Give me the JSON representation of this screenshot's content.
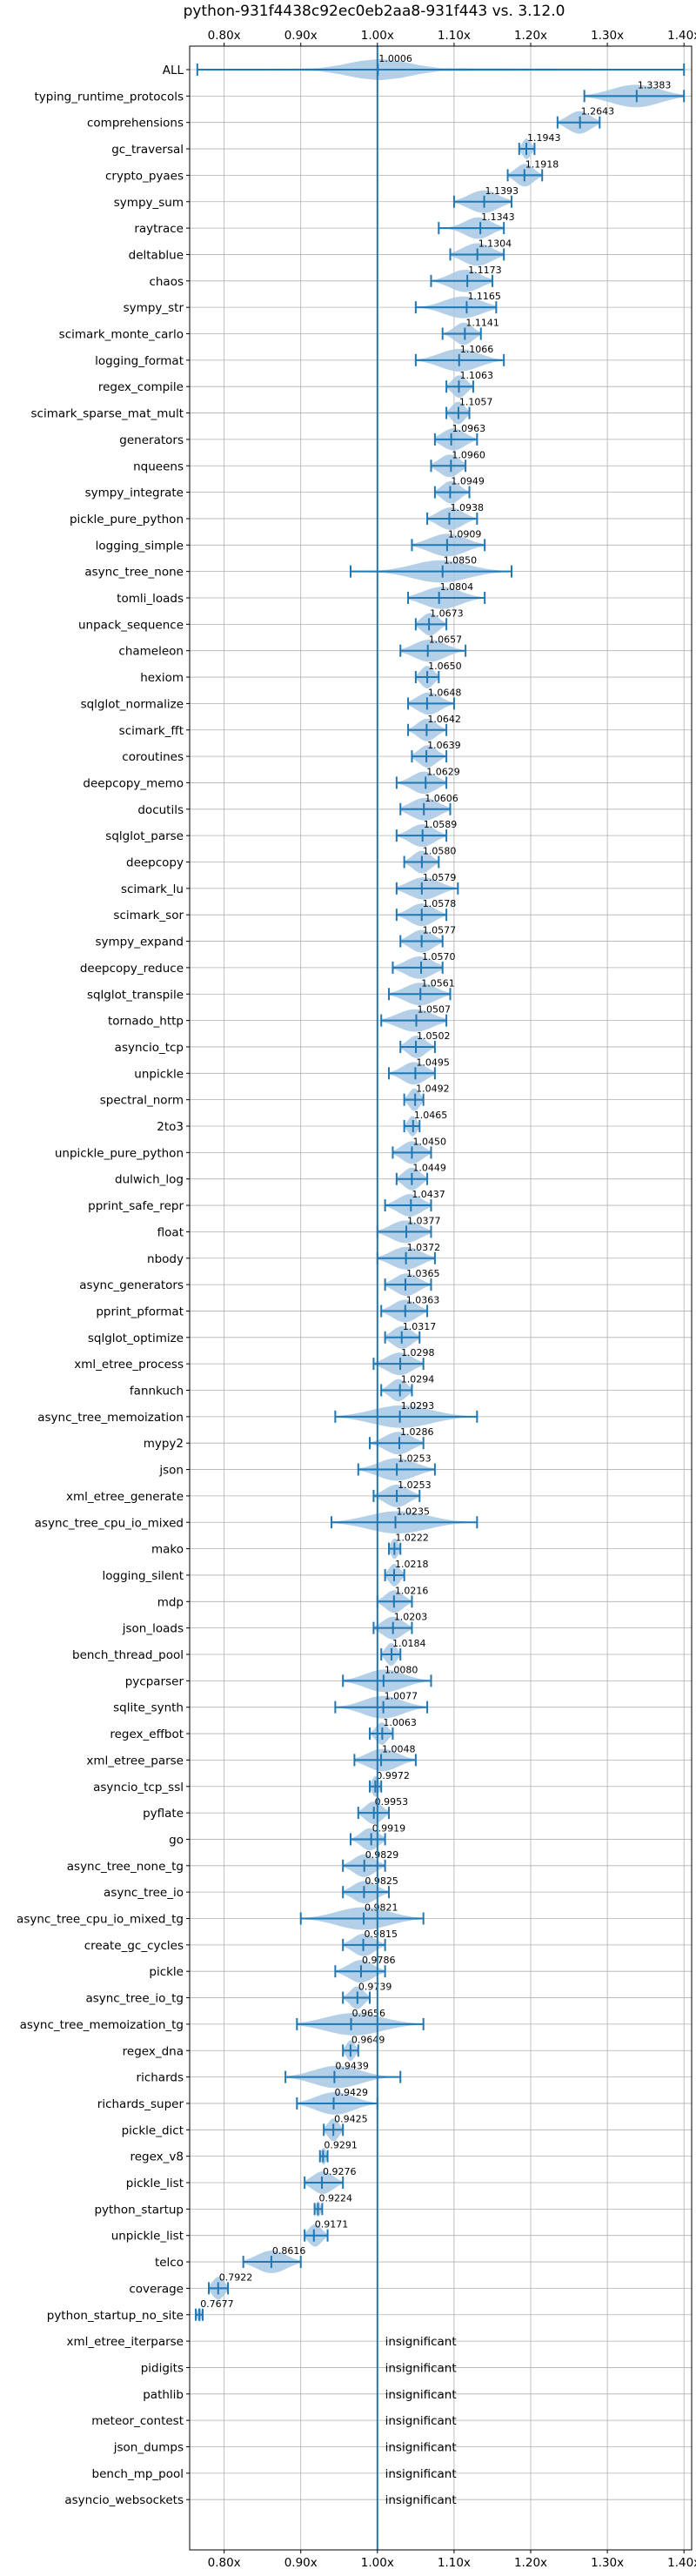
{
  "chart_data": {
    "type": "violin",
    "title": "python-931f4438c92ec0eb2aa8-931f443 vs. 3.12.0",
    "xlim": [
      0.755,
      1.41
    ],
    "xticks": [
      0.8,
      0.9,
      1.0,
      1.1,
      1.2,
      1.3,
      1.4
    ],
    "xtick_labels": [
      "0.80x",
      "0.90x",
      "1.00x",
      "1.10x",
      "1.20x",
      "1.30x",
      "1.40x"
    ],
    "reference_line": 1.0,
    "grid": true,
    "colors": {
      "violin": "#a6c8e4",
      "marker": "#1f77b4",
      "grid": "#b0b0b0",
      "axis": "#000000"
    },
    "insignificant_label": "insignificant",
    "benchmarks": [
      {
        "name": "ALL",
        "median": 1.0006,
        "label": "1.0006",
        "min": 0.765,
        "max": 1.4,
        "spread": 0.04
      },
      {
        "name": "typing_runtime_protocols",
        "median": 1.3383,
        "label": "1.3383",
        "min": 1.27,
        "max": 1.4,
        "spread": 0.04
      },
      {
        "name": "comprehensions",
        "median": 1.2643,
        "label": "1.2643",
        "min": 1.235,
        "max": 1.29,
        "spread": 0.02
      },
      {
        "name": "gc_traversal",
        "median": 1.1943,
        "label": "1.1943",
        "min": 1.185,
        "max": 1.205,
        "spread": 0.008
      },
      {
        "name": "crypto_pyaes",
        "median": 1.1918,
        "label": "1.1918",
        "min": 1.17,
        "max": 1.215,
        "spread": 0.015
      },
      {
        "name": "sympy_sum",
        "median": 1.1393,
        "label": "1.1393",
        "min": 1.1,
        "max": 1.175,
        "spread": 0.025
      },
      {
        "name": "raytrace",
        "median": 1.1343,
        "label": "1.1343",
        "min": 1.08,
        "max": 1.165,
        "spread": 0.02
      },
      {
        "name": "deltablue",
        "median": 1.1304,
        "label": "1.1304",
        "min": 1.095,
        "max": 1.165,
        "spread": 0.025
      },
      {
        "name": "chaos",
        "median": 1.1173,
        "label": "1.1173",
        "min": 1.07,
        "max": 1.15,
        "spread": 0.025
      },
      {
        "name": "sympy_str",
        "median": 1.1165,
        "label": "1.1165",
        "min": 1.05,
        "max": 1.155,
        "spread": 0.03
      },
      {
        "name": "scimark_monte_carlo",
        "median": 1.1141,
        "label": "1.1141",
        "min": 1.085,
        "max": 1.135,
        "spread": 0.015
      },
      {
        "name": "logging_format",
        "median": 1.1066,
        "label": "1.1066",
        "min": 1.05,
        "max": 1.165,
        "spread": 0.03
      },
      {
        "name": "regex_compile",
        "median": 1.1063,
        "label": "1.1063",
        "min": 1.09,
        "max": 1.125,
        "spread": 0.012
      },
      {
        "name": "scimark_sparse_mat_mult",
        "median": 1.1057,
        "label": "1.1057",
        "min": 1.09,
        "max": 1.12,
        "spread": 0.012
      },
      {
        "name": "generators",
        "median": 1.0963,
        "label": "1.0963",
        "min": 1.075,
        "max": 1.13,
        "spread": 0.02
      },
      {
        "name": "nqueens",
        "median": 1.096,
        "label": "1.0960",
        "min": 1.07,
        "max": 1.115,
        "spread": 0.02
      },
      {
        "name": "sympy_integrate",
        "median": 1.0949,
        "label": "1.0949",
        "min": 1.075,
        "max": 1.12,
        "spread": 0.015
      },
      {
        "name": "pickle_pure_python",
        "median": 1.0938,
        "label": "1.0938",
        "min": 1.065,
        "max": 1.13,
        "spread": 0.02
      },
      {
        "name": "logging_simple",
        "median": 1.0909,
        "label": "1.0909",
        "min": 1.045,
        "max": 1.14,
        "spread": 0.03
      },
      {
        "name": "async_tree_none",
        "median": 1.085,
        "label": "1.0850",
        "min": 0.965,
        "max": 1.175,
        "spread": 0.04
      },
      {
        "name": "tomli_loads",
        "median": 1.0804,
        "label": "1.0804",
        "min": 1.04,
        "max": 1.14,
        "spread": 0.03
      },
      {
        "name": "unpack_sequence",
        "median": 1.0673,
        "label": "1.0673",
        "min": 1.05,
        "max": 1.09,
        "spread": 0.015
      },
      {
        "name": "chameleon",
        "median": 1.0657,
        "label": "1.0657",
        "min": 1.03,
        "max": 1.115,
        "spread": 0.025
      },
      {
        "name": "hexiom",
        "median": 1.065,
        "label": "1.0650",
        "min": 1.05,
        "max": 1.08,
        "spread": 0.012
      },
      {
        "name": "sqlglot_normalize",
        "median": 1.0648,
        "label": "1.0648",
        "min": 1.04,
        "max": 1.1,
        "spread": 0.02
      },
      {
        "name": "scimark_fft",
        "median": 1.0642,
        "label": "1.0642",
        "min": 1.04,
        "max": 1.09,
        "spread": 0.015
      },
      {
        "name": "coroutines",
        "median": 1.0639,
        "label": "1.0639",
        "min": 1.045,
        "max": 1.09,
        "spread": 0.015
      },
      {
        "name": "deepcopy_memo",
        "median": 1.0629,
        "label": "1.0629",
        "min": 1.025,
        "max": 1.09,
        "spread": 0.02
      },
      {
        "name": "docutils",
        "median": 1.0606,
        "label": "1.0606",
        "min": 1.03,
        "max": 1.095,
        "spread": 0.025
      },
      {
        "name": "sqlglot_parse",
        "median": 1.0589,
        "label": "1.0589",
        "min": 1.025,
        "max": 1.09,
        "spread": 0.02
      },
      {
        "name": "deepcopy",
        "median": 1.058,
        "label": "1.0580",
        "min": 1.035,
        "max": 1.08,
        "spread": 0.015
      },
      {
        "name": "scimark_lu",
        "median": 1.0579,
        "label": "1.0579",
        "min": 1.025,
        "max": 1.105,
        "spread": 0.025
      },
      {
        "name": "scimark_sor",
        "median": 1.0578,
        "label": "1.0578",
        "min": 1.025,
        "max": 1.09,
        "spread": 0.02
      },
      {
        "name": "sympy_expand",
        "median": 1.0577,
        "label": "1.0577",
        "min": 1.03,
        "max": 1.085,
        "spread": 0.02
      },
      {
        "name": "deepcopy_reduce",
        "median": 1.057,
        "label": "1.0570",
        "min": 1.02,
        "max": 1.085,
        "spread": 0.025
      },
      {
        "name": "sqlglot_transpile",
        "median": 1.0561,
        "label": "1.0561",
        "min": 1.015,
        "max": 1.095,
        "spread": 0.025
      },
      {
        "name": "tornado_http",
        "median": 1.0507,
        "label": "1.0507",
        "min": 1.005,
        "max": 1.09,
        "spread": 0.03
      },
      {
        "name": "asyncio_tcp",
        "median": 1.0502,
        "label": "1.0502",
        "min": 1.03,
        "max": 1.075,
        "spread": 0.015
      },
      {
        "name": "unpickle",
        "median": 1.0495,
        "label": "1.0495",
        "min": 1.015,
        "max": 1.075,
        "spread": 0.02
      },
      {
        "name": "spectral_norm",
        "median": 1.0492,
        "label": "1.0492",
        "min": 1.035,
        "max": 1.06,
        "spread": 0.01
      },
      {
        "name": "2to3",
        "median": 1.0465,
        "label": "1.0465",
        "min": 1.035,
        "max": 1.055,
        "spread": 0.008
      },
      {
        "name": "unpickle_pure_python",
        "median": 1.045,
        "label": "1.0450",
        "min": 1.02,
        "max": 1.07,
        "spread": 0.018
      },
      {
        "name": "dulwich_log",
        "median": 1.0449,
        "label": "1.0449",
        "min": 1.025,
        "max": 1.065,
        "spread": 0.015
      },
      {
        "name": "pprint_safe_repr",
        "median": 1.0437,
        "label": "1.0437",
        "min": 1.01,
        "max": 1.07,
        "spread": 0.02
      },
      {
        "name": "float",
        "median": 1.0377,
        "label": "1.0377",
        "min": 1.0,
        "max": 1.07,
        "spread": 0.025
      },
      {
        "name": "nbody",
        "median": 1.0372,
        "label": "1.0372",
        "min": 1.0,
        "max": 1.075,
        "spread": 0.025
      },
      {
        "name": "async_generators",
        "median": 1.0365,
        "label": "1.0365",
        "min": 1.01,
        "max": 1.07,
        "spread": 0.02
      },
      {
        "name": "pprint_pformat",
        "median": 1.0363,
        "label": "1.0363",
        "min": 1.005,
        "max": 1.065,
        "spread": 0.02
      },
      {
        "name": "sqlglot_optimize",
        "median": 1.0317,
        "label": "1.0317",
        "min": 1.01,
        "max": 1.055,
        "spread": 0.018
      },
      {
        "name": "xml_etree_process",
        "median": 1.0298,
        "label": "1.0298",
        "min": 0.995,
        "max": 1.06,
        "spread": 0.022
      },
      {
        "name": "fannkuch",
        "median": 1.0294,
        "label": "1.0294",
        "min": 1.005,
        "max": 1.045,
        "spread": 0.015
      },
      {
        "name": "async_tree_memoization",
        "median": 1.0293,
        "label": "1.0293",
        "min": 0.945,
        "max": 1.13,
        "spread": 0.045
      },
      {
        "name": "mypy2",
        "median": 1.0286,
        "label": "1.0286",
        "min": 0.99,
        "max": 1.06,
        "spread": 0.022
      },
      {
        "name": "json",
        "median": 1.0253,
        "label": "1.0253",
        "min": 0.975,
        "max": 1.075,
        "spread": 0.03
      },
      {
        "name": "xml_etree_generate",
        "median": 1.0253,
        "label": "1.0253",
        "min": 0.995,
        "max": 1.055,
        "spread": 0.02
      },
      {
        "name": "async_tree_cpu_io_mixed",
        "median": 1.0235,
        "label": "1.0235",
        "min": 0.94,
        "max": 1.13,
        "spread": 0.045
      },
      {
        "name": "mako",
        "median": 1.0222,
        "label": "1.0222",
        "min": 1.015,
        "max": 1.03,
        "spread": 0.008
      },
      {
        "name": "logging_silent",
        "median": 1.0218,
        "label": "1.0218",
        "min": 1.01,
        "max": 1.035,
        "spread": 0.01
      },
      {
        "name": "mdp",
        "median": 1.0216,
        "label": "1.0216",
        "min": 1.0,
        "max": 1.045,
        "spread": 0.015
      },
      {
        "name": "json_loads",
        "median": 1.0203,
        "label": "1.0203",
        "min": 0.995,
        "max": 1.045,
        "spread": 0.018
      },
      {
        "name": "bench_thread_pool",
        "median": 1.0184,
        "label": "1.0184",
        "min": 1.005,
        "max": 1.03,
        "spread": 0.01
      },
      {
        "name": "pycparser",
        "median": 1.008,
        "label": "1.0080",
        "min": 0.955,
        "max": 1.07,
        "spread": 0.03
      },
      {
        "name": "sqlite_synth",
        "median": 1.0077,
        "label": "1.0077",
        "min": 0.945,
        "max": 1.065,
        "spread": 0.03
      },
      {
        "name": "regex_effbot",
        "median": 1.0063,
        "label": "1.0063",
        "min": 0.99,
        "max": 1.02,
        "spread": 0.01
      },
      {
        "name": "xml_etree_parse",
        "median": 1.0048,
        "label": "1.0048",
        "min": 0.97,
        "max": 1.05,
        "spread": 0.025
      },
      {
        "name": "asyncio_tcp_ssl",
        "median": 0.9972,
        "label": "0.9972",
        "min": 0.99,
        "max": 1.005,
        "spread": 0.008
      },
      {
        "name": "pyflate",
        "median": 0.9953,
        "label": "0.9953",
        "min": 0.975,
        "max": 1.015,
        "spread": 0.015
      },
      {
        "name": "go",
        "median": 0.9919,
        "label": "0.9919",
        "min": 0.965,
        "max": 1.01,
        "spread": 0.015
      },
      {
        "name": "async_tree_none_tg",
        "median": 0.9829,
        "label": "0.9829",
        "min": 0.955,
        "max": 1.01,
        "spread": 0.018
      },
      {
        "name": "async_tree_io",
        "median": 0.9825,
        "label": "0.9825",
        "min": 0.955,
        "max": 1.015,
        "spread": 0.02
      },
      {
        "name": "async_tree_cpu_io_mixed_tg",
        "median": 0.9821,
        "label": "0.9821",
        "min": 0.9,
        "max": 1.06,
        "spread": 0.04
      },
      {
        "name": "create_gc_cycles",
        "median": 0.9815,
        "label": "0.9815",
        "min": 0.955,
        "max": 1.01,
        "spread": 0.018
      },
      {
        "name": "pickle",
        "median": 0.9786,
        "label": "0.9786",
        "min": 0.945,
        "max": 1.01,
        "spread": 0.02
      },
      {
        "name": "async_tree_io_tg",
        "median": 0.9739,
        "label": "0.9739",
        "min": 0.955,
        "max": 0.99,
        "spread": 0.012
      },
      {
        "name": "async_tree_memoization_tg",
        "median": 0.9656,
        "label": "0.9656",
        "min": 0.895,
        "max": 1.06,
        "spread": 0.045
      },
      {
        "name": "regex_dna",
        "median": 0.9649,
        "label": "0.9649",
        "min": 0.955,
        "max": 0.975,
        "spread": 0.008
      },
      {
        "name": "richards",
        "median": 0.9439,
        "label": "0.9439",
        "min": 0.88,
        "max": 1.03,
        "spread": 0.035
      },
      {
        "name": "richards_super",
        "median": 0.9429,
        "label": "0.9429",
        "min": 0.895,
        "max": 1.0,
        "spread": 0.03
      },
      {
        "name": "pickle_dict",
        "median": 0.9425,
        "label": "0.9425",
        "min": 0.93,
        "max": 0.955,
        "spread": 0.01
      },
      {
        "name": "regex_v8",
        "median": 0.9291,
        "label": "0.9291",
        "min": 0.925,
        "max": 0.935,
        "spread": 0.006
      },
      {
        "name": "pickle_list",
        "median": 0.9276,
        "label": "0.9276",
        "min": 0.905,
        "max": 0.955,
        "spread": 0.018
      },
      {
        "name": "python_startup",
        "median": 0.9224,
        "label": "0.9224",
        "min": 0.918,
        "max": 0.928,
        "spread": 0.005
      },
      {
        "name": "unpickle_list",
        "median": 0.9171,
        "label": "0.9171",
        "min": 0.905,
        "max": 0.935,
        "spread": 0.012
      },
      {
        "name": "telco",
        "median": 0.8616,
        "label": "0.8616",
        "min": 0.825,
        "max": 0.9,
        "spread": 0.025
      },
      {
        "name": "coverage",
        "median": 0.7922,
        "label": "0.7922",
        "min": 0.78,
        "max": 0.805,
        "spread": 0.012
      },
      {
        "name": "python_startup_no_site",
        "median": 0.7677,
        "label": "0.7677",
        "min": 0.763,
        "max": 0.772,
        "spread": 0.004
      },
      {
        "name": "xml_etree_iterparse",
        "insignificant": true
      },
      {
        "name": "pidigits",
        "insignificant": true
      },
      {
        "name": "pathlib",
        "insignificant": true
      },
      {
        "name": "meteor_contest",
        "insignificant": true
      },
      {
        "name": "json_dumps",
        "insignificant": true
      },
      {
        "name": "bench_mp_pool",
        "insignificant": true
      },
      {
        "name": "asyncio_websockets",
        "insignificant": true
      }
    ]
  }
}
